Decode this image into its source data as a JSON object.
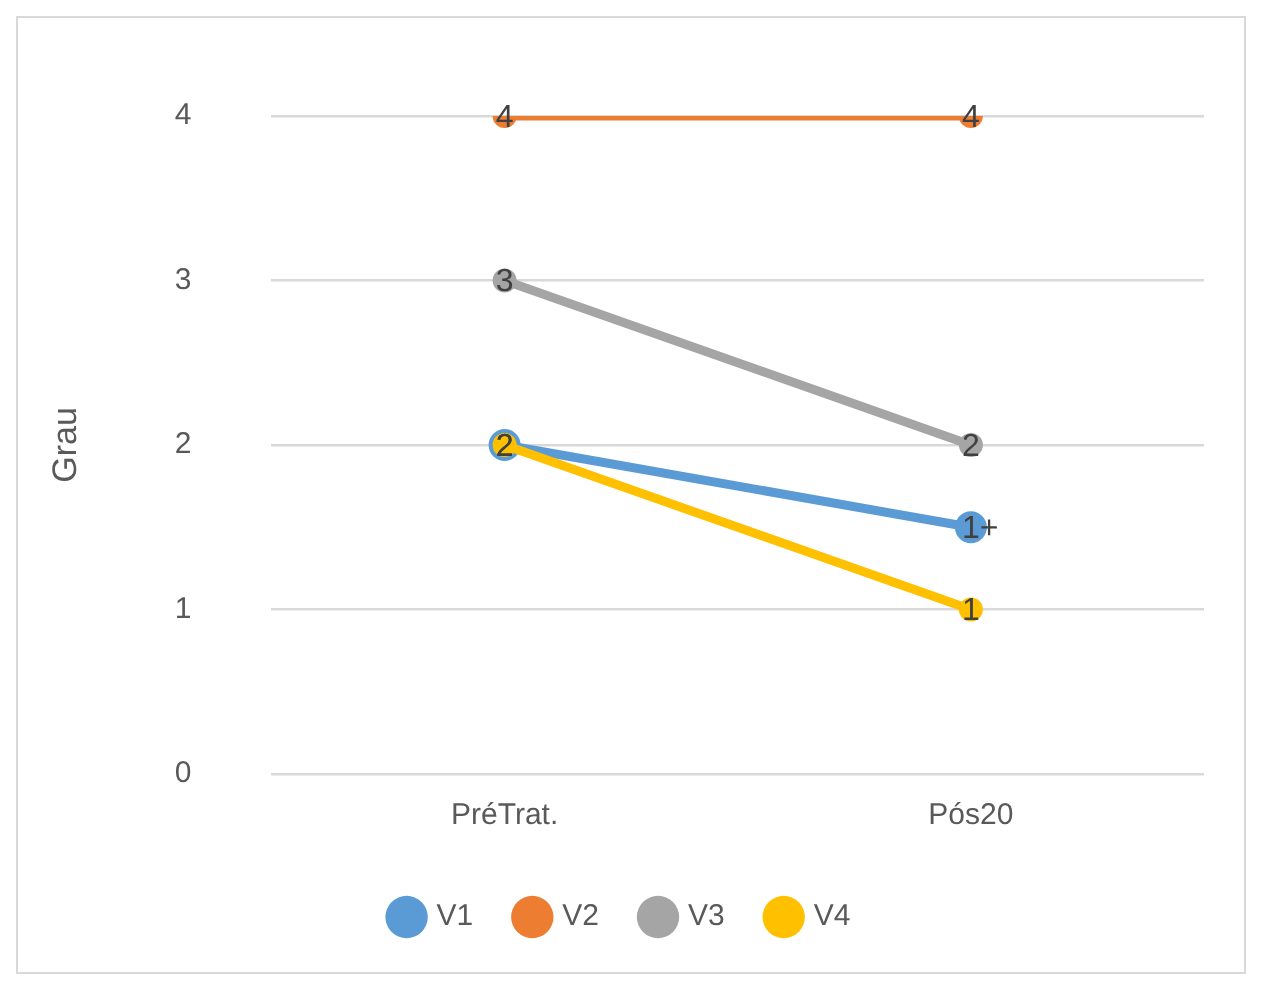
{
  "chart_data": {
    "type": "line",
    "ylabel": "Grau",
    "categories": [
      "PréTrat.",
      "Pós20"
    ],
    "series": [
      {
        "name": "V1",
        "color": "#5b9bd5",
        "values": [
          2,
          1.5
        ],
        "value_labels": [
          "2",
          "1+"
        ]
      },
      {
        "name": "V2",
        "color": "#ed7d31",
        "values": [
          4,
          4
        ],
        "value_labels": [
          "4",
          "4"
        ]
      },
      {
        "name": "V3",
        "color": "#a5a5a5",
        "values": [
          3,
          2
        ],
        "value_labels": [
          "3",
          "2"
        ]
      },
      {
        "name": "V4",
        "color": "#ffc000",
        "values": [
          2,
          1
        ],
        "value_labels": [
          "2",
          "1"
        ]
      }
    ],
    "ylim": [
      0,
      4
    ],
    "yticks": [
      0,
      1,
      2,
      3,
      4
    ],
    "grid": "y",
    "legend": "bottom",
    "marker": "circle",
    "line_style": "solid"
  }
}
